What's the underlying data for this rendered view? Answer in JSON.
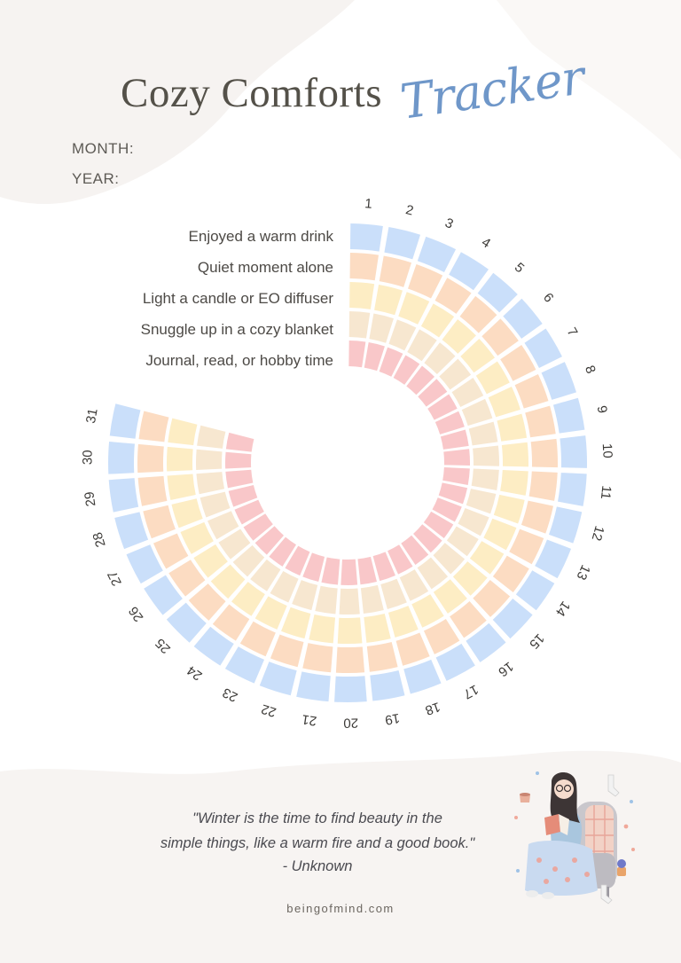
{
  "header": {
    "title": "Cozy Comforts",
    "script_title": "Tracker",
    "month_label": "MONTH:",
    "year_label": "YEAR:"
  },
  "habits": [
    {
      "label": "Enjoyed a warm drink",
      "color": "#cadffa"
    },
    {
      "label": "Quiet moment alone",
      "color": "#fcdcc2"
    },
    {
      "label": "Light a candle or EO diffuser",
      "color": "#fdedc4"
    },
    {
      "label": "Snuggle up in a cozy blanket",
      "color": "#f7e7d0"
    },
    {
      "label": "Journal, read, or hobby time",
      "color": "#f9c7c9"
    }
  ],
  "days": [
    "1",
    "2",
    "3",
    "4",
    "5",
    "6",
    "7",
    "8",
    "9",
    "10",
    "11",
    "12",
    "13",
    "14",
    "15",
    "16",
    "17",
    "18",
    "19",
    "20",
    "21",
    "22",
    "23",
    "24",
    "25",
    "26",
    "27",
    "28",
    "29",
    "30",
    "31"
  ],
  "quote": {
    "line1": "\"Winter is the time to find beauty in the",
    "line2": "simple things, like a warm fire and a good book.\"",
    "author": "- Unknown"
  },
  "footer": "beingofmind.com",
  "colors": {
    "title": "#545149",
    "script": "#6f97c9",
    "text": "#4d4a46"
  }
}
